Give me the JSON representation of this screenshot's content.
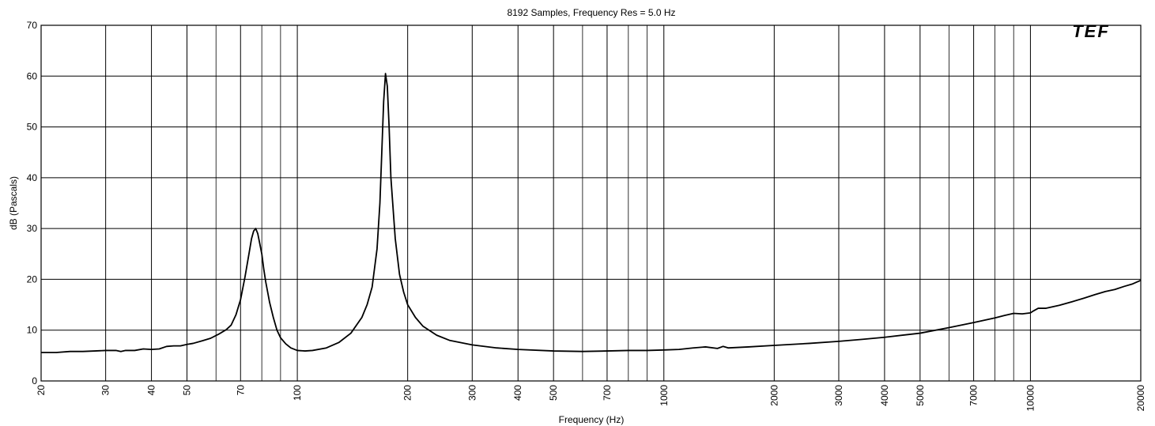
{
  "chart_data": {
    "type": "line",
    "title": "8192 Samples, Frequency Res = 5.0 Hz",
    "xlabel": "Frequency (Hz)",
    "ylabel": "dB (Pascals)",
    "xscale": "log",
    "xlim": [
      20,
      20000
    ],
    "ylim": [
      0,
      70
    ],
    "grid": true,
    "logo_text": "TEF",
    "x_ticks": [
      20,
      30,
      40,
      50,
      70,
      100,
      200,
      300,
      400,
      500,
      700,
      1000,
      2000,
      3000,
      4000,
      5000,
      7000,
      10000,
      20000
    ],
    "x_tick_labels": [
      "20",
      "30",
      "40",
      "50",
      "70",
      "100",
      "200",
      "300",
      "400",
      "500",
      "700",
      "1000",
      "2000",
      "3000",
      "4000",
      "5000",
      "7000",
      "10000",
      "20000"
    ],
    "x_minor_grid": [
      60,
      80,
      90,
      600,
      800,
      900,
      6000,
      8000,
      9000
    ],
    "y_ticks": [
      0,
      10,
      20,
      30,
      40,
      50,
      60,
      70
    ],
    "y_tick_labels": [
      "0",
      "10",
      "20",
      "30",
      "40",
      "50",
      "60",
      "70"
    ],
    "colors": {
      "line": "#000000",
      "grid": "#000000",
      "background": "#ffffff"
    },
    "series": [
      {
        "x": [
          20,
          22,
          24,
          26,
          28,
          30,
          32,
          33,
          34,
          36,
          38,
          40,
          42,
          44,
          46,
          48,
          50,
          52,
          55,
          58,
          61,
          64,
          66,
          68,
          70,
          72,
          74,
          75,
          76,
          77,
          78,
          79,
          80,
          81,
          82,
          83,
          84,
          86,
          88,
          90,
          93,
          96,
          100,
          105,
          110,
          120,
          130,
          140,
          150,
          155,
          160,
          165,
          168,
          170,
          172,
          174,
          176,
          178,
          180,
          185,
          190,
          195,
          200,
          210,
          220,
          240,
          260,
          300,
          350,
          400,
          500,
          600,
          700,
          800,
          900,
          1000,
          1100,
          1200,
          1300,
          1400,
          1450,
          1500,
          1700,
          2000,
          2500,
          3000,
          3500,
          4000,
          5000,
          6000,
          7000,
          8000,
          8500,
          9000,
          9500,
          10000,
          10200,
          10500,
          11000,
          12000,
          13000,
          14000,
          15000,
          16000,
          17000,
          18000,
          19000,
          20000
        ],
        "y": [
          5.6,
          5.6,
          5.8,
          5.8,
          5.9,
          6.0,
          6.0,
          5.8,
          6.0,
          6.0,
          6.3,
          6.2,
          6.3,
          6.8,
          6.9,
          6.9,
          7.2,
          7.4,
          7.9,
          8.4,
          9.2,
          10.1,
          11.0,
          13.0,
          16.0,
          20.5,
          25.5,
          28.0,
          29.5,
          30.0,
          29.0,
          27.0,
          25.0,
          22.0,
          19.5,
          17.5,
          15.5,
          12.5,
          10.0,
          8.5,
          7.3,
          6.5,
          6.0,
          5.9,
          6.0,
          6.5,
          7.6,
          9.4,
          12.5,
          15.0,
          18.5,
          26.0,
          35.0,
          45.0,
          55.0,
          60.5,
          58.0,
          50.0,
          40.0,
          28.0,
          21.0,
          17.5,
          15.0,
          12.5,
          10.8,
          9.0,
          8.0,
          7.1,
          6.5,
          6.2,
          5.9,
          5.8,
          5.9,
          6.0,
          6.0,
          6.1,
          6.2,
          6.5,
          6.7,
          6.4,
          6.8,
          6.5,
          6.7,
          7.0,
          7.4,
          7.8,
          8.2,
          8.6,
          9.4,
          10.5,
          11.5,
          12.4,
          12.9,
          13.3,
          13.2,
          13.4,
          13.8,
          14.3,
          14.3,
          14.9,
          15.6,
          16.3,
          17.0,
          17.6,
          18.0,
          18.6,
          19.1,
          19.8
        ]
      }
    ]
  }
}
